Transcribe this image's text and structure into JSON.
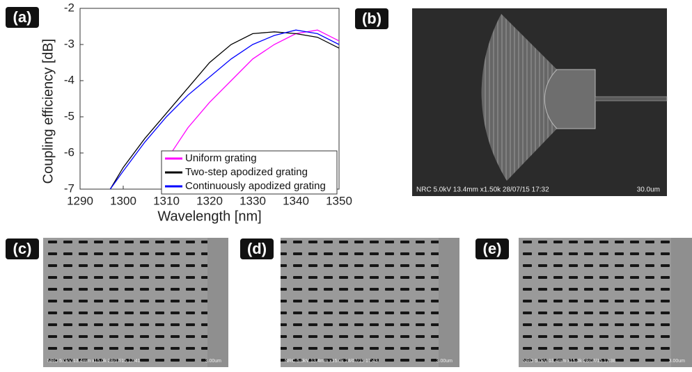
{
  "chart_data": {
    "type": "line",
    "panel_label": "(a)",
    "xlabel": "Wavelength [nm]",
    "ylabel": "Coupling efficiency [dB]",
    "x": [
      1297,
      1300,
      1305,
      1310,
      1315,
      1320,
      1325,
      1330,
      1335,
      1340,
      1345,
      1350
    ],
    "series": [
      {
        "name": "Uniform grating",
        "color": "#ff00ff",
        "values": [
          null,
          null,
          null,
          -6.2,
          -5.3,
          -4.6,
          -4.0,
          -3.4,
          -3.0,
          -2.7,
          -2.6,
          -2.9
        ]
      },
      {
        "name": "Two-step apodized grating",
        "color": "#000000",
        "values": [
          -7.0,
          -6.4,
          -5.6,
          -4.9,
          -4.2,
          -3.5,
          -3.0,
          -2.7,
          -2.65,
          -2.7,
          -2.8,
          -3.1
        ]
      },
      {
        "name": "Continuously apodized grating",
        "color": "#0000ff",
        "values": [
          -7.0,
          -6.5,
          -5.7,
          -5.0,
          -4.4,
          -3.9,
          -3.4,
          -3.0,
          -2.75,
          -2.6,
          -2.7,
          -3.0
        ]
      }
    ],
    "xlim": [
      1290,
      1350
    ],
    "xticks": [
      1290,
      1300,
      1310,
      1320,
      1330,
      1340,
      1350
    ],
    "ylim": [
      -7,
      -2
    ],
    "yticks": [
      -7,
      -6,
      -5,
      -4,
      -3,
      -2
    ],
    "legend": "lower right"
  },
  "figure_panels": [
    {
      "label": "(b)",
      "caption": "NRC 5.0kV 13.4mm x1.50k 28/07/15 17:32",
      "scale": "30.0um"
    },
    {
      "label": "(c)",
      "caption": "NRC 5.0kV 13.4mm x15.0k 28/07/15 17:41",
      "scale": "3.00um"
    },
    {
      "label": "(d)",
      "caption": "NRC 5.0kV 13.4mm x15.0k 28/07/15 17:43",
      "scale": "3.00um"
    },
    {
      "label": "(e)",
      "caption": "NRC 5.0kV 13.4mm x15.0k 28/07/15 17:38",
      "scale": "3.00um"
    }
  ]
}
